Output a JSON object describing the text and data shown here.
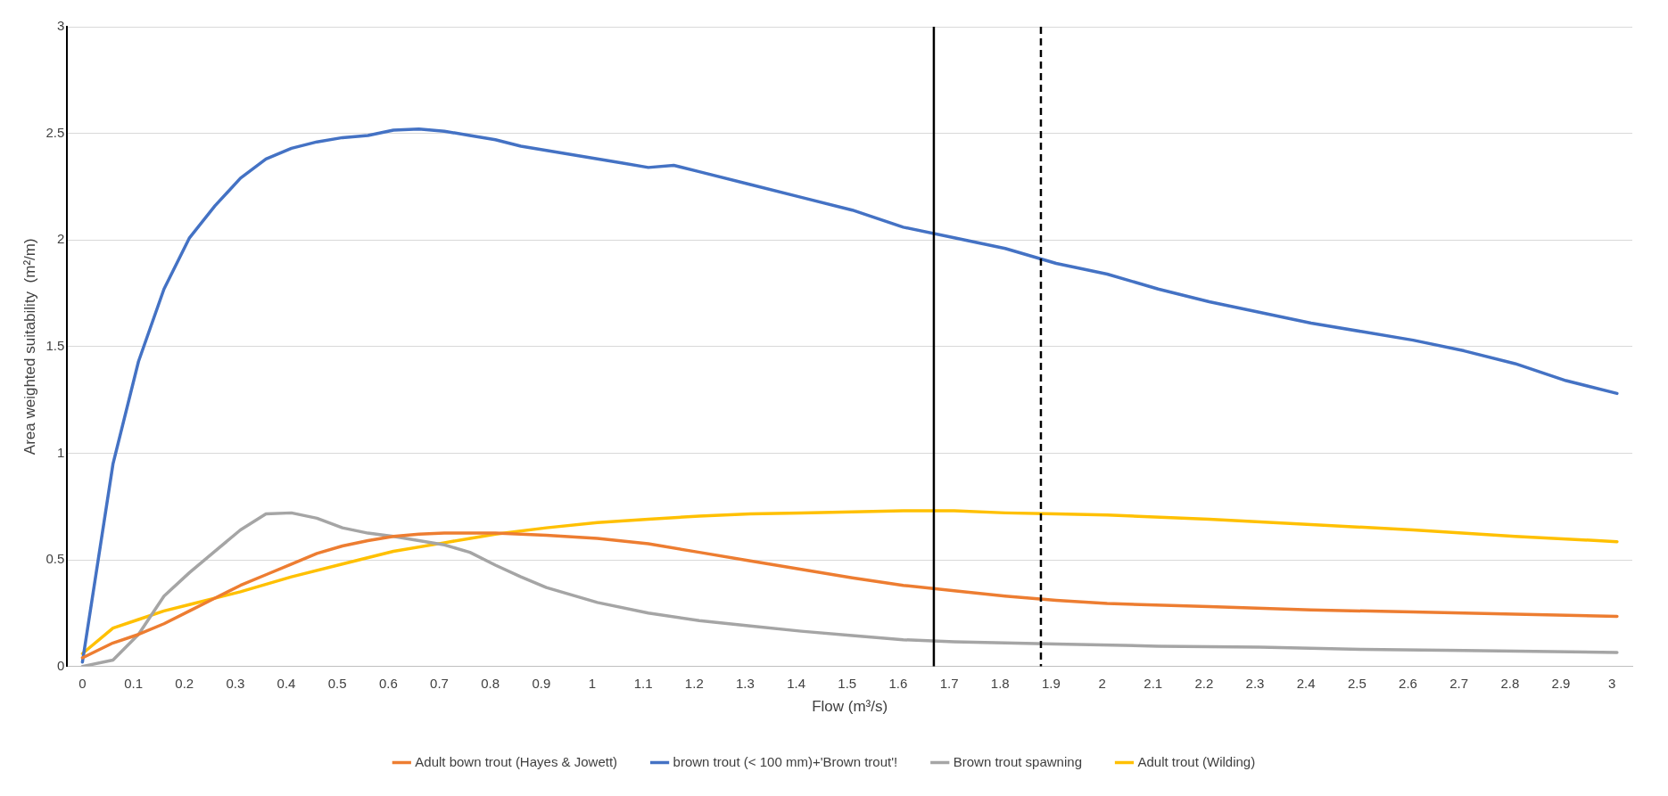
{
  "chart_data": {
    "type": "line",
    "xlabel": "Flow (m³/s)",
    "ylabel": "Area weighted suitability  (m²/m)",
    "xlim": [
      -0.03,
      3.04
    ],
    "xticks": [
      0,
      0.1,
      0.2,
      0.3,
      0.4,
      0.5,
      0.6,
      0.7,
      0.8,
      0.9,
      1,
      1.1,
      1.2,
      1.3,
      1.4,
      1.5,
      1.6,
      1.7,
      1.8,
      1.9,
      2,
      2.1,
      2.2,
      2.3,
      2.4,
      2.5,
      2.6,
      2.7,
      2.8,
      2.9,
      3
    ],
    "ylim": [
      0,
      3
    ],
    "yticks": [
      0,
      0.5,
      1,
      1.5,
      2,
      2.5,
      3
    ],
    "grid": "y",
    "legend": "bottom",
    "marker": "none",
    "line_style": "solid",
    "ref_lines": [
      {
        "axis": "x",
        "value": 1.67,
        "label": null,
        "color": "#000000",
        "line_style": "solid"
      },
      {
        "axis": "x",
        "value": 1.88,
        "label": null,
        "color": "#000000",
        "line_style": "dashed"
      }
    ],
    "series": [
      {
        "name": "Adult bown trout (Hayes & Jowett)",
        "color": "#ed7d31",
        "x": [
          0,
          0.06,
          0.11,
          0.16,
          0.21,
          0.26,
          0.31,
          0.36,
          0.41,
          0.46,
          0.51,
          0.56,
          0.61,
          0.66,
          0.71,
          0.81,
          0.91,
          1.01,
          1.11,
          1.21,
          1.31,
          1.41,
          1.51,
          1.61,
          1.71,
          1.81,
          1.91,
          2.01,
          2.21,
          2.41,
          2.61,
          2.81,
          3.01
        ],
        "values": [
          0.04,
          0.11,
          0.15,
          0.2,
          0.26,
          0.32,
          0.38,
          0.43,
          0.48,
          0.53,
          0.565,
          0.59,
          0.61,
          0.62,
          0.625,
          0.625,
          0.615,
          0.6,
          0.575,
          0.535,
          0.495,
          0.455,
          0.415,
          0.38,
          0.355,
          0.33,
          0.31,
          0.295,
          0.28,
          0.265,
          0.255,
          0.245,
          0.235
        ]
      },
      {
        "name": "brown trout (< 100 mm)+'Brown trout'!",
        "color": "#4472c4",
        "x": [
          0,
          0.06,
          0.11,
          0.16,
          0.21,
          0.26,
          0.31,
          0.36,
          0.41,
          0.46,
          0.51,
          0.56,
          0.61,
          0.66,
          0.71,
          0.76,
          0.81,
          0.86,
          0.91,
          0.96,
          1.01,
          1.06,
          1.11,
          1.16,
          1.21,
          1.31,
          1.41,
          1.51,
          1.61,
          1.71,
          1.81,
          1.91,
          2.01,
          2.11,
          2.21,
          2.31,
          2.41,
          2.51,
          2.61,
          2.71,
          2.81,
          2.91,
          3.01
        ],
        "values": [
          0.02,
          0.95,
          1.43,
          1.77,
          2.01,
          2.16,
          2.29,
          2.38,
          2.43,
          2.46,
          2.48,
          2.49,
          2.515,
          2.52,
          2.51,
          2.49,
          2.47,
          2.44,
          2.42,
          2.4,
          2.38,
          2.36,
          2.34,
          2.35,
          2.32,
          2.26,
          2.2,
          2.14,
          2.06,
          2.01,
          1.96,
          1.89,
          1.84,
          1.77,
          1.71,
          1.66,
          1.61,
          1.57,
          1.53,
          1.48,
          1.42,
          1.34,
          1.28
        ]
      },
      {
        "name": "Brown trout spawning",
        "color": "#a5a5a5",
        "x": [
          0,
          0.06,
          0.11,
          0.16,
          0.21,
          0.26,
          0.31,
          0.36,
          0.41,
          0.46,
          0.51,
          0.56,
          0.61,
          0.66,
          0.71,
          0.76,
          0.81,
          0.86,
          0.91,
          1.01,
          1.11,
          1.21,
          1.31,
          1.41,
          1.51,
          1.61,
          1.71,
          1.91,
          2.11,
          2.31,
          2.51,
          2.71,
          3.01
        ],
        "values": [
          0,
          0.03,
          0.15,
          0.33,
          0.44,
          0.54,
          0.64,
          0.715,
          0.72,
          0.695,
          0.65,
          0.625,
          0.61,
          0.59,
          0.57,
          0.535,
          0.475,
          0.42,
          0.37,
          0.3,
          0.25,
          0.215,
          0.19,
          0.165,
          0.145,
          0.125,
          0.115,
          0.105,
          0.095,
          0.09,
          0.08,
          0.075,
          0.065
        ]
      },
      {
        "name": "Adult trout (Wilding)",
        "color": "#ffc000",
        "x": [
          0,
          0.06,
          0.11,
          0.16,
          0.21,
          0.31,
          0.41,
          0.51,
          0.61,
          0.71,
          0.81,
          0.91,
          1.01,
          1.11,
          1.21,
          1.31,
          1.41,
          1.51,
          1.61,
          1.71,
          1.81,
          1.91,
          2.01,
          2.21,
          2.41,
          2.61,
          2.81,
          3.01
        ],
        "values": [
          0.06,
          0.18,
          0.22,
          0.26,
          0.29,
          0.35,
          0.42,
          0.48,
          0.54,
          0.58,
          0.62,
          0.65,
          0.675,
          0.69,
          0.705,
          0.715,
          0.72,
          0.725,
          0.73,
          0.73,
          0.72,
          0.715,
          0.71,
          0.69,
          0.665,
          0.64,
          0.61,
          0.585
        ]
      }
    ]
  }
}
